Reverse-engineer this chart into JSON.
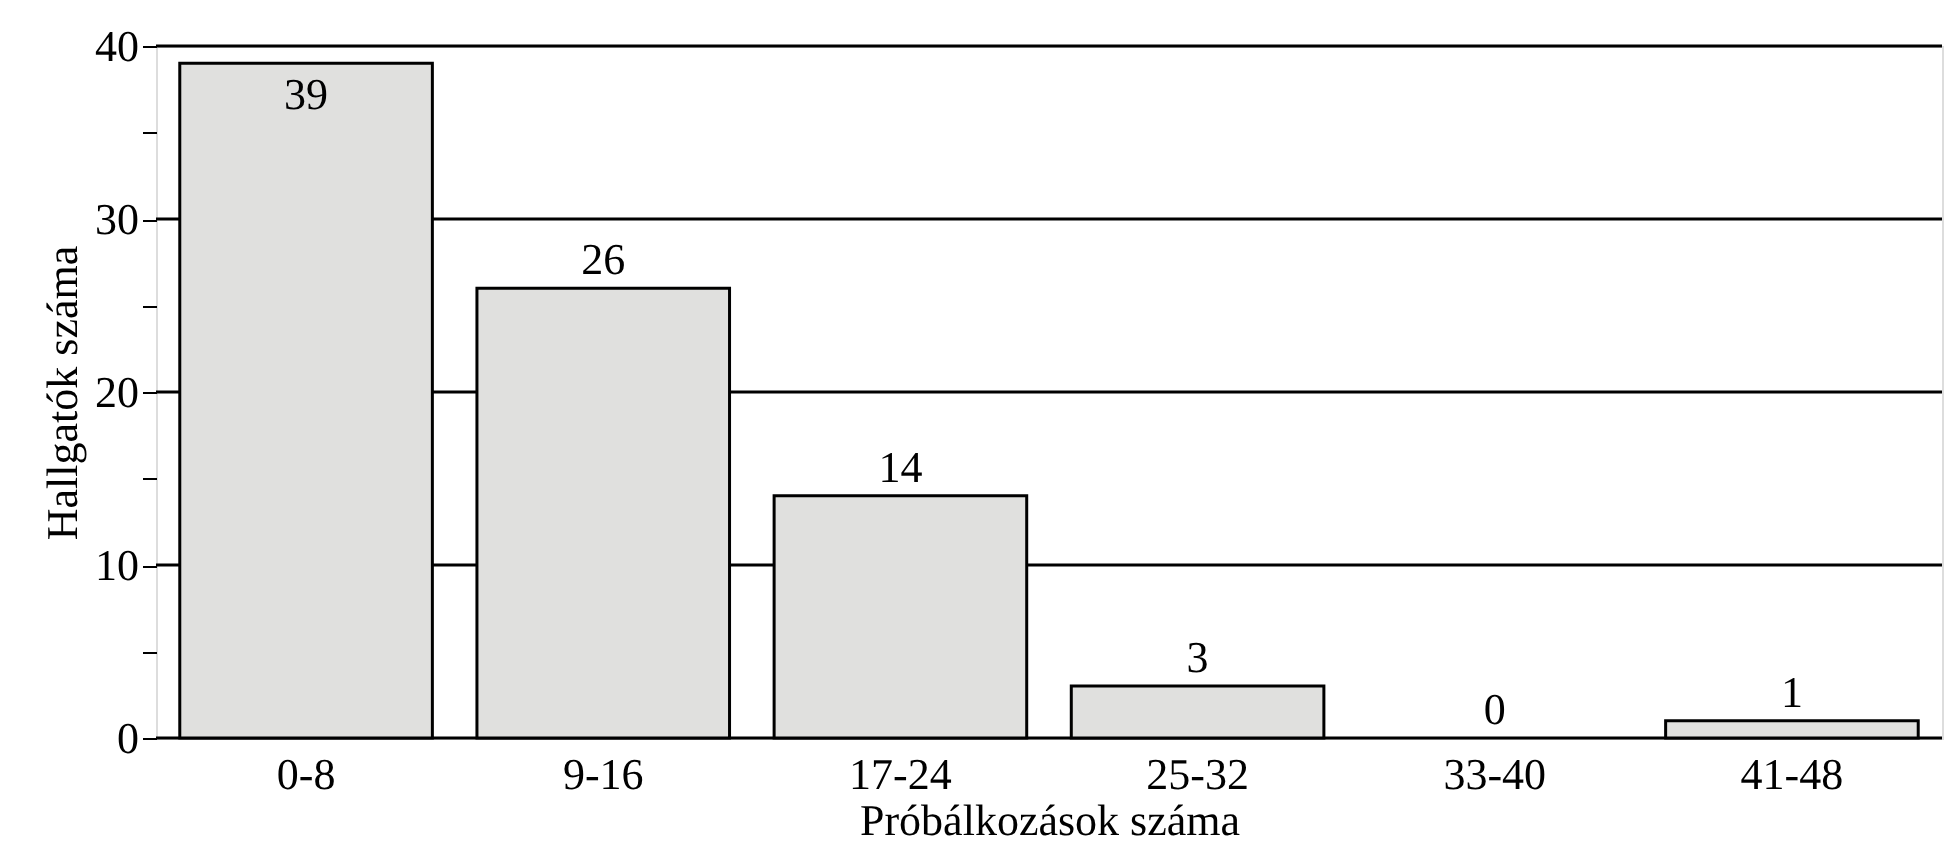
{
  "chart_data": {
    "type": "bar",
    "xlabel": "Próbálkozások száma",
    "ylabel": "Hallgatók száma",
    "categories": [
      "0-8",
      "9-16",
      "17-24",
      "25-32",
      "33-40",
      "41-48"
    ],
    "values": [
      39,
      26,
      14,
      3,
      0,
      1
    ],
    "color": "#e0e0de",
    "ylim": [
      0,
      40
    ],
    "yticks": [
      0,
      10,
      20,
      30,
      40,
      {
        "value": 5,
        "label": null
      },
      {
        "value": 15,
        "label": null
      },
      {
        "value": 25,
        "label": null
      },
      {
        "value": 35,
        "label": null
      }
    ],
    "grid": "y",
    "data_labels": true
  }
}
